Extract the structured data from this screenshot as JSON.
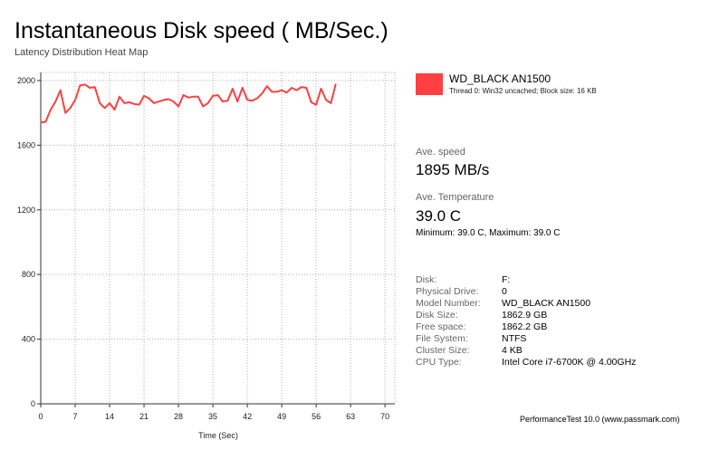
{
  "window": {
    "title": "Instantaneous Disk speed ( MB/Sec.)",
    "subtitle": "Latency Distribution Heat Map"
  },
  "legend": {
    "name": "WD_BLACK AN1500",
    "detail": "Thread 0: Win32 uncached; Block size: 16 KB",
    "color": "#ff4040"
  },
  "stats": {
    "avg_speed_label": "Ave. speed",
    "avg_speed_value": "1895 MB/s",
    "avg_temp_label": "Ave. Temperature",
    "avg_temp_value": "39.0 C",
    "temp_range": "Minimum: 39.0 C, Maximum: 39.0 C"
  },
  "info": [
    {
      "label": "Disk:",
      "value": "F:"
    },
    {
      "label": "Physical Drive:",
      "value": "0"
    },
    {
      "label": "Model Number:",
      "value": "WD_BLACK AN1500"
    },
    {
      "label": "Disk Size:",
      "value": "1862.9 GB"
    },
    {
      "label": "Free space:",
      "value": "1862.2 GB"
    },
    {
      "label": "File System:",
      "value": "NTFS"
    },
    {
      "label": "Cluster Size:",
      "value": "4 KB"
    },
    {
      "label": "CPU Type:",
      "value": "Intel Core i7-6700K @ 4.00GHz"
    }
  ],
  "footer": "PerformanceTest 10.0 (www.passmark.com)",
  "chart_data": {
    "type": "line",
    "title": "Instantaneous Disk speed ( MB/Sec.)",
    "subtitle": "Latency Distribution Heat Map",
    "xlabel": "Time (Sec)",
    "ylabel": "",
    "xlim": [
      0,
      72
    ],
    "ylim": [
      0,
      2050
    ],
    "x_ticks": [
      0,
      7,
      14,
      21,
      28,
      35,
      42,
      49,
      56,
      63,
      70
    ],
    "y_ticks": [
      0,
      400,
      800,
      1200,
      1600,
      2000
    ],
    "grid": true,
    "legend_position": "right",
    "series": [
      {
        "name": "WD_BLACK AN1500",
        "color": "#ff4040",
        "x": [
          0,
          1,
          2,
          3,
          4,
          5,
          6,
          7,
          8,
          9,
          10,
          11,
          12,
          13,
          14,
          15,
          16,
          17,
          18,
          19,
          20,
          21,
          22,
          23,
          24,
          25,
          26,
          27,
          28,
          29,
          30,
          31,
          32,
          33,
          34,
          35,
          36,
          37,
          38,
          39,
          40,
          41,
          42,
          43,
          44,
          45,
          46,
          47,
          48,
          49,
          50,
          51,
          52,
          53,
          54,
          55,
          56,
          57,
          58,
          59,
          60
        ],
        "y": [
          1740,
          1745,
          1820,
          1870,
          1940,
          1800,
          1830,
          1880,
          1970,
          1975,
          1955,
          1960,
          1860,
          1830,
          1860,
          1820,
          1900,
          1860,
          1865,
          1855,
          1850,
          1905,
          1890,
          1860,
          1870,
          1880,
          1885,
          1870,
          1840,
          1910,
          1895,
          1900,
          1900,
          1840,
          1860,
          1905,
          1910,
          1870,
          1875,
          1950,
          1870,
          1955,
          1880,
          1875,
          1890,
          1920,
          1965,
          1930,
          1930,
          1940,
          1925,
          1955,
          1940,
          1960,
          1955,
          1865,
          1850,
          1950,
          1880,
          1860,
          1980
        ]
      }
    ]
  }
}
